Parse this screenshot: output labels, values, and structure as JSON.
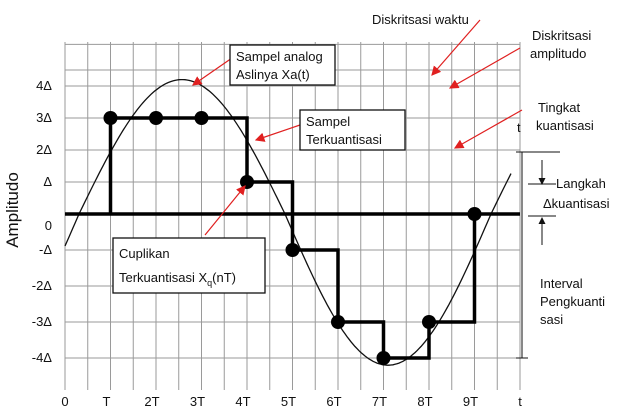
{
  "y_axis_title": "Amplitudo",
  "y_labels": [
    "4Δ",
    "3Δ",
    "2Δ",
    "Δ",
    "0",
    "-Δ",
    "-2Δ",
    "-3Δ",
    "-4Δ"
  ],
  "x_labels": [
    "0",
    "T",
    "2T",
    "3T",
    "4T",
    "5T",
    "6T",
    "7T",
    "8T",
    "9T",
    "t"
  ],
  "t_top": "t",
  "annotations": {
    "time_discretization": "Diskritsasi waktu",
    "amplitude_discretization": [
      "Diskritsasi",
      "amplitudo"
    ],
    "quantization_level": [
      "Tingkat",
      "kuantisasi"
    ],
    "step": [
      "Langkah",
      "Δkuantisasi"
    ],
    "interval": [
      "Interval",
      "Pengkuanti",
      "sasi"
    ],
    "analog_sample": [
      "Sampel analog",
      "Aslinya Xa(t)"
    ],
    "quantized_sample": [
      "Sampel",
      "Terkuantisasi"
    ],
    "quantized_cuplikan": [
      "Cuplikan",
      "Terkuantisasi X",
      "q",
      "(nT)"
    ]
  }
}
